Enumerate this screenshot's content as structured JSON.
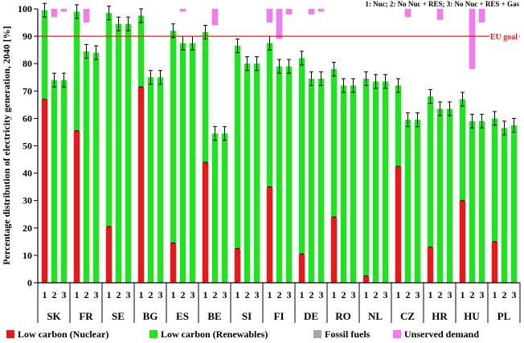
{
  "chart_data": {
    "type": "bar",
    "stacked": true,
    "title": "1: Nuc; 2: No Nuc + RES; 3: No Nuc + RES + Gas",
    "ylabel": "Percentage distribution of electricity generation, 2040 [%]",
    "xlabel": "",
    "ylim": [
      0,
      100
    ],
    "yticks": [
      0,
      10,
      20,
      30,
      40,
      50,
      60,
      70,
      80,
      90,
      100
    ],
    "scenarios": [
      "1",
      "2",
      "3"
    ],
    "countries": [
      "SK",
      "FR",
      "SE",
      "BG",
      "ES",
      "BE",
      "SI",
      "FI",
      "DE",
      "RO",
      "NL",
      "CZ",
      "HR",
      "HU",
      "PL"
    ],
    "series_names": [
      "Low carbon (Nuclear)",
      "Low carbon (Renewables)",
      "Fossil fuels",
      "Unserved demand"
    ],
    "reference_line": {
      "value": 90,
      "label": "EU goal",
      "color": "#e0201b"
    },
    "colors": {
      "nuclear": "#e41a1c",
      "renewables": "#22e022",
      "fossil": "#a6a6a6",
      "unserved": "#f07cf0"
    },
    "legend_position": "bottom",
    "grid": false,
    "bars": [
      {
        "country": "SK",
        "scenario": "1",
        "nuclear": 67,
        "low_carbon_total": 99.5,
        "unserved": 0
      },
      {
        "country": "SK",
        "scenario": "2",
        "nuclear": 0,
        "low_carbon_total": 74,
        "unserved": 3
      },
      {
        "country": "SK",
        "scenario": "3",
        "nuclear": 0,
        "low_carbon_total": 74,
        "unserved": 1
      },
      {
        "country": "FR",
        "scenario": "1",
        "nuclear": 55.5,
        "low_carbon_total": 99,
        "unserved": 0
      },
      {
        "country": "FR",
        "scenario": "2",
        "nuclear": 0,
        "low_carbon_total": 84.5,
        "unserved": 5
      },
      {
        "country": "FR",
        "scenario": "3",
        "nuclear": 0,
        "low_carbon_total": 84,
        "unserved": 0
      },
      {
        "country": "SE",
        "scenario": "1",
        "nuclear": 20.5,
        "low_carbon_total": 98.5,
        "unserved": 0
      },
      {
        "country": "SE",
        "scenario": "2",
        "nuclear": 0,
        "low_carbon_total": 94.5,
        "unserved": 0
      },
      {
        "country": "SE",
        "scenario": "3",
        "nuclear": 0,
        "low_carbon_total": 94.5,
        "unserved": 0
      },
      {
        "country": "BG",
        "scenario": "1",
        "nuclear": 71.5,
        "low_carbon_total": 97.5,
        "unserved": 0
      },
      {
        "country": "BG",
        "scenario": "2",
        "nuclear": 0,
        "low_carbon_total": 75,
        "unserved": 0
      },
      {
        "country": "BG",
        "scenario": "3",
        "nuclear": 0,
        "low_carbon_total": 75,
        "unserved": 0
      },
      {
        "country": "ES",
        "scenario": "1",
        "nuclear": 14.5,
        "low_carbon_total": 92,
        "unserved": 0
      },
      {
        "country": "ES",
        "scenario": "2",
        "nuclear": 0,
        "low_carbon_total": 87.5,
        "unserved": 1
      },
      {
        "country": "ES",
        "scenario": "3",
        "nuclear": 0,
        "low_carbon_total": 87.5,
        "unserved": 0
      },
      {
        "country": "BE",
        "scenario": "1",
        "nuclear": 44,
        "low_carbon_total": 91.5,
        "unserved": 0
      },
      {
        "country": "BE",
        "scenario": "2",
        "nuclear": 0,
        "low_carbon_total": 54.5,
        "unserved": 6
      },
      {
        "country": "BE",
        "scenario": "3",
        "nuclear": 0,
        "low_carbon_total": 54.5,
        "unserved": 0
      },
      {
        "country": "SI",
        "scenario": "1",
        "nuclear": 12.5,
        "low_carbon_total": 86.5,
        "unserved": 0
      },
      {
        "country": "SI",
        "scenario": "2",
        "nuclear": 0,
        "low_carbon_total": 80,
        "unserved": 0
      },
      {
        "country": "SI",
        "scenario": "3",
        "nuclear": 0,
        "low_carbon_total": 80,
        "unserved": 0
      },
      {
        "country": "FI",
        "scenario": "1",
        "nuclear": 35,
        "low_carbon_total": 87.5,
        "unserved": 5
      },
      {
        "country": "FI",
        "scenario": "2",
        "nuclear": 0,
        "low_carbon_total": 79,
        "unserved": 11
      },
      {
        "country": "FI",
        "scenario": "3",
        "nuclear": 0,
        "low_carbon_total": 79,
        "unserved": 2
      },
      {
        "country": "DE",
        "scenario": "1",
        "nuclear": 10.5,
        "low_carbon_total": 82,
        "unserved": 0
      },
      {
        "country": "DE",
        "scenario": "2",
        "nuclear": 0,
        "low_carbon_total": 74.5,
        "unserved": 2
      },
      {
        "country": "DE",
        "scenario": "3",
        "nuclear": 0,
        "low_carbon_total": 74.5,
        "unserved": 1
      },
      {
        "country": "RO",
        "scenario": "1",
        "nuclear": 24,
        "low_carbon_total": 78,
        "unserved": 0
      },
      {
        "country": "RO",
        "scenario": "2",
        "nuclear": 0,
        "low_carbon_total": 72,
        "unserved": 0
      },
      {
        "country": "RO",
        "scenario": "3",
        "nuclear": 0,
        "low_carbon_total": 72,
        "unserved": 0
      },
      {
        "country": "NL",
        "scenario": "1",
        "nuclear": 2.5,
        "low_carbon_total": 74.5,
        "unserved": 0
      },
      {
        "country": "NL",
        "scenario": "2",
        "nuclear": 0,
        "low_carbon_total": 73.5,
        "unserved": 0
      },
      {
        "country": "NL",
        "scenario": "3",
        "nuclear": 0,
        "low_carbon_total": 73.5,
        "unserved": 0
      },
      {
        "country": "CZ",
        "scenario": "1",
        "nuclear": 42.5,
        "low_carbon_total": 72,
        "unserved": 0
      },
      {
        "country": "CZ",
        "scenario": "2",
        "nuclear": 0,
        "low_carbon_total": 59.5,
        "unserved": 3
      },
      {
        "country": "CZ",
        "scenario": "3",
        "nuclear": 0,
        "low_carbon_total": 59.5,
        "unserved": 0
      },
      {
        "country": "HR",
        "scenario": "1",
        "nuclear": 13,
        "low_carbon_total": 68,
        "unserved": 0
      },
      {
        "country": "HR",
        "scenario": "2",
        "nuclear": 0,
        "low_carbon_total": 63.5,
        "unserved": 4
      },
      {
        "country": "HR",
        "scenario": "3",
        "nuclear": 0,
        "low_carbon_total": 63.5,
        "unserved": 0
      },
      {
        "country": "HU",
        "scenario": "1",
        "nuclear": 30,
        "low_carbon_total": 67,
        "unserved": 0
      },
      {
        "country": "HU",
        "scenario": "2",
        "nuclear": 0,
        "low_carbon_total": 59,
        "unserved": 22
      },
      {
        "country": "HU",
        "scenario": "3",
        "nuclear": 0,
        "low_carbon_total": 59,
        "unserved": 5
      },
      {
        "country": "PL",
        "scenario": "1",
        "nuclear": 15,
        "low_carbon_total": 60,
        "unserved": 0
      },
      {
        "country": "PL",
        "scenario": "2",
        "nuclear": 0,
        "low_carbon_total": 56.5,
        "unserved": 0
      },
      {
        "country": "PL",
        "scenario": "3",
        "nuclear": 0,
        "low_carbon_total": 57.5,
        "unserved": 0
      }
    ]
  }
}
